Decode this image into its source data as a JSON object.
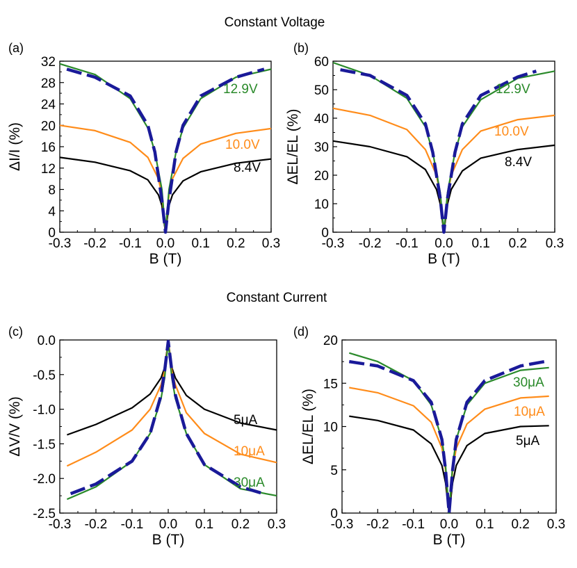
{
  "section_titles": {
    "top": "Constant Voltage",
    "bottom": "Constant Current"
  },
  "colors": {
    "green": "#2a8a2a",
    "orange": "#ff8c1a",
    "black": "#000000",
    "fit": "#1a1a99"
  },
  "chart_data": [
    {
      "id": "a",
      "panel_label": "(a)",
      "type": "line",
      "xlabel": "B (T)",
      "ylabel": "ΔI/I (%)",
      "xlim": [
        -0.3,
        0.3
      ],
      "ylim": [
        0,
        32
      ],
      "xticks": [
        "-0.3",
        "-0.2",
        "-0.1",
        "0.0",
        "0.1",
        "0.2",
        "0.3"
      ],
      "yticks": [
        "0",
        "4",
        "8",
        "12",
        "16",
        "20",
        "24",
        "28",
        "32"
      ],
      "ytick_values": [
        0,
        4,
        8,
        12,
        16,
        20,
        24,
        28,
        32
      ],
      "series": [
        {
          "name": "8.4V",
          "color": "black",
          "values": [
            [
              -0.3,
              14.0
            ],
            [
              -0.2,
              13.1
            ],
            [
              -0.1,
              11.5
            ],
            [
              -0.05,
              9.8
            ],
            [
              -0.02,
              7.0
            ],
            [
              -0.01,
              5.0
            ],
            [
              0.0,
              0.0
            ],
            [
              0.01,
              5.0
            ],
            [
              0.02,
              7.0
            ],
            [
              0.05,
              9.6
            ],
            [
              0.1,
              11.3
            ],
            [
              0.2,
              12.9
            ],
            [
              0.3,
              13.7
            ]
          ]
        },
        {
          "name": "10.0V",
          "color": "orange",
          "values": [
            [
              -0.3,
              20.0
            ],
            [
              -0.2,
              19.0
            ],
            [
              -0.1,
              16.8
            ],
            [
              -0.05,
              14.0
            ],
            [
              -0.02,
              10.0
            ],
            [
              -0.01,
              7.0
            ],
            [
              0.0,
              0.0
            ],
            [
              0.01,
              7.0
            ],
            [
              0.02,
              10.0
            ],
            [
              0.05,
              13.8
            ],
            [
              0.1,
              16.5
            ],
            [
              0.2,
              18.5
            ],
            [
              0.3,
              19.4
            ]
          ]
        },
        {
          "name": "12.9V",
          "color": "green",
          "values": [
            [
              -0.3,
              31.5
            ],
            [
              -0.2,
              29.5
            ],
            [
              -0.1,
              25.0
            ],
            [
              -0.05,
              19.5
            ],
            [
              -0.03,
              15.0
            ],
            [
              -0.01,
              8.0
            ],
            [
              0.0,
              0.0
            ],
            [
              0.01,
              8.0
            ],
            [
              0.03,
              15.0
            ],
            [
              0.05,
              19.5
            ],
            [
              0.1,
              25.0
            ],
            [
              0.2,
              29.0
            ],
            [
              0.3,
              30.5
            ]
          ]
        },
        {
          "name": "fit",
          "color": "fit",
          "dashed": true,
          "values": [
            [
              -0.28,
              30.5
            ],
            [
              -0.2,
              29.0
            ],
            [
              -0.1,
              25.5
            ],
            [
              -0.05,
              20.0
            ],
            [
              -0.03,
              15.0
            ],
            [
              -0.01,
              6.0
            ],
            [
              0.0,
              0.0
            ],
            [
              0.01,
              6.0
            ],
            [
              0.03,
              15.0
            ],
            [
              0.05,
              20.0
            ],
            [
              0.1,
              25.5
            ],
            [
              0.2,
              29.0
            ],
            [
              0.28,
              30.5
            ]
          ]
        }
      ],
      "series_labels": [
        {
          "text": "12.9V",
          "color": "green"
        },
        {
          "text": "10.0V",
          "color": "orange"
        },
        {
          "text": "8.4V",
          "color": "black"
        }
      ]
    },
    {
      "id": "b",
      "panel_label": "(b)",
      "type": "line",
      "xlabel": "B (T)",
      "ylabel": "ΔEL/EL (%)",
      "xlim": [
        -0.3,
        0.3
      ],
      "ylim": [
        0,
        60
      ],
      "xticks": [
        "-0.3",
        "-0.2",
        "-0.1",
        "0.0",
        "0.1",
        "0.2",
        "0.3"
      ],
      "yticks": [
        "0",
        "10",
        "20",
        "30",
        "40",
        "50",
        "60"
      ],
      "ytick_values": [
        0,
        10,
        20,
        30,
        40,
        50,
        60
      ],
      "series": [
        {
          "name": "8.4V",
          "color": "black",
          "values": [
            [
              -0.3,
              32.0
            ],
            [
              -0.2,
              30.0
            ],
            [
              -0.1,
              26.5
            ],
            [
              -0.05,
              22.0
            ],
            [
              -0.02,
              15.0
            ],
            [
              -0.01,
              10.0
            ],
            [
              0.0,
              0.0
            ],
            [
              0.01,
              10.0
            ],
            [
              0.02,
              15.0
            ],
            [
              0.05,
              21.5
            ],
            [
              0.1,
              26.0
            ],
            [
              0.2,
              29.0
            ],
            [
              0.3,
              30.5
            ]
          ]
        },
        {
          "name": "10.0V",
          "color": "orange",
          "values": [
            [
              -0.3,
              43.5
            ],
            [
              -0.2,
              41.0
            ],
            [
              -0.1,
              36.0
            ],
            [
              -0.05,
              29.0
            ],
            [
              -0.02,
              20.0
            ],
            [
              -0.01,
              13.0
            ],
            [
              0.0,
              0.0
            ],
            [
              0.01,
              13.0
            ],
            [
              0.02,
              20.0
            ],
            [
              0.05,
              29.0
            ],
            [
              0.1,
              35.5
            ],
            [
              0.2,
              39.5
            ],
            [
              0.3,
              41.0
            ]
          ]
        },
        {
          "name": "12.9V",
          "color": "green",
          "values": [
            [
              -0.3,
              59.5
            ],
            [
              -0.2,
              55.0
            ],
            [
              -0.1,
              47.0
            ],
            [
              -0.05,
              37.0
            ],
            [
              -0.03,
              28.0
            ],
            [
              -0.01,
              14.0
            ],
            [
              0.0,
              0.0
            ],
            [
              0.01,
              14.0
            ],
            [
              0.03,
              28.0
            ],
            [
              0.05,
              37.0
            ],
            [
              0.1,
              46.5
            ],
            [
              0.2,
              54.0
            ],
            [
              0.3,
              56.5
            ]
          ]
        },
        {
          "name": "fit",
          "color": "fit",
          "dashed": true,
          "values": [
            [
              -0.28,
              57.0
            ],
            [
              -0.2,
              55.0
            ],
            [
              -0.1,
              48.0
            ],
            [
              -0.05,
              38.0
            ],
            [
              -0.03,
              28.0
            ],
            [
              -0.01,
              12.0
            ],
            [
              0.0,
              0.0
            ],
            [
              0.01,
              12.0
            ],
            [
              0.03,
              28.0
            ],
            [
              0.05,
              38.0
            ],
            [
              0.1,
              48.0
            ],
            [
              0.2,
              54.5
            ],
            [
              0.25,
              56.5
            ]
          ]
        }
      ],
      "series_labels": [
        {
          "text": "12.9V",
          "color": "green"
        },
        {
          "text": "10.0V",
          "color": "orange"
        },
        {
          "text": "8.4V",
          "color": "black"
        }
      ]
    },
    {
      "id": "c",
      "panel_label": "(c)",
      "type": "line",
      "xlabel": "B (T)",
      "ylabel": "ΔV/V (%)",
      "xlim": [
        -0.3,
        0.3
      ],
      "ylim": [
        -2.5,
        0.0
      ],
      "xticks": [
        "-0.3",
        "-0.2",
        "-0.1",
        "0.0",
        "0.1",
        "0.2",
        "0.3"
      ],
      "yticks": [
        "0.0",
        "-0.5",
        "-1.0",
        "-1.5",
        "-2.0",
        "-2.5"
      ],
      "ytick_values": [
        0.0,
        -0.5,
        -1.0,
        -1.5,
        -2.0,
        -2.5
      ],
      "series": [
        {
          "name": "5μA",
          "color": "black",
          "values": [
            [
              -0.28,
              -1.37
            ],
            [
              -0.2,
              -1.22
            ],
            [
              -0.1,
              -0.98
            ],
            [
              -0.05,
              -0.78
            ],
            [
              -0.02,
              -0.55
            ],
            [
              -0.01,
              -0.4
            ],
            [
              0.0,
              -0.02
            ],
            [
              0.01,
              -0.4
            ],
            [
              0.02,
              -0.55
            ],
            [
              0.05,
              -0.8
            ],
            [
              0.1,
              -1.0
            ],
            [
              0.2,
              -1.2
            ],
            [
              0.3,
              -1.3
            ]
          ]
        },
        {
          "name": "10μA",
          "color": "orange",
          "values": [
            [
              -0.28,
              -1.82
            ],
            [
              -0.2,
              -1.62
            ],
            [
              -0.1,
              -1.3
            ],
            [
              -0.05,
              -1.0
            ],
            [
              -0.02,
              -0.65
            ],
            [
              -0.01,
              -0.45
            ],
            [
              0.0,
              -0.02
            ],
            [
              0.01,
              -0.45
            ],
            [
              0.02,
              -0.65
            ],
            [
              0.05,
              -1.05
            ],
            [
              0.1,
              -1.35
            ],
            [
              0.2,
              -1.65
            ],
            [
              0.3,
              -1.77
            ]
          ]
        },
        {
          "name": "30μA",
          "color": "green",
          "values": [
            [
              -0.28,
              -2.3
            ],
            [
              -0.2,
              -2.12
            ],
            [
              -0.1,
              -1.75
            ],
            [
              -0.05,
              -1.35
            ],
            [
              -0.02,
              -0.85
            ],
            [
              -0.01,
              -0.55
            ],
            [
              0.0,
              -0.02
            ],
            [
              0.01,
              -0.55
            ],
            [
              0.02,
              -0.85
            ],
            [
              0.05,
              -1.35
            ],
            [
              0.1,
              -1.8
            ],
            [
              0.2,
              -2.15
            ],
            [
              0.3,
              -2.25
            ]
          ]
        },
        {
          "name": "fit",
          "color": "fit",
          "dashed": true,
          "values": [
            [
              -0.27,
              -2.22
            ],
            [
              -0.2,
              -2.08
            ],
            [
              -0.1,
              -1.75
            ],
            [
              -0.05,
              -1.35
            ],
            [
              -0.02,
              -0.8
            ],
            [
              -0.01,
              -0.45
            ],
            [
              0.0,
              -0.02
            ],
            [
              0.01,
              -0.45
            ],
            [
              0.02,
              -0.8
            ],
            [
              0.05,
              -1.35
            ],
            [
              0.1,
              -1.8
            ],
            [
              0.2,
              -2.12
            ],
            [
              0.27,
              -2.23
            ]
          ]
        }
      ],
      "series_labels": [
        {
          "text": "5μA",
          "color": "black"
        },
        {
          "text": "10μA",
          "color": "orange"
        },
        {
          "text": "30μA",
          "color": "green"
        }
      ]
    },
    {
      "id": "d",
      "panel_label": "(d)",
      "type": "line",
      "xlabel": "B (T)",
      "ylabel": "ΔEL/EL (%)",
      "xlim": [
        -0.3,
        0.3
      ],
      "ylim": [
        0,
        20
      ],
      "xticks": [
        "-0.3",
        "-0.2",
        "-0.1",
        "0.0",
        "0.1",
        "0.2",
        "0.3"
      ],
      "yticks": [
        "0",
        "5",
        "10",
        "15",
        "20"
      ],
      "ytick_values": [
        0,
        5,
        10,
        15,
        20
      ],
      "series": [
        {
          "name": "5μA",
          "color": "black",
          "values": [
            [
              -0.28,
              11.2
            ],
            [
              -0.2,
              10.7
            ],
            [
              -0.1,
              9.6
            ],
            [
              -0.05,
              8.0
            ],
            [
              -0.02,
              5.5
            ],
            [
              -0.01,
              3.5
            ],
            [
              0.0,
              0.0
            ],
            [
              0.01,
              3.5
            ],
            [
              0.02,
              5.5
            ],
            [
              0.05,
              7.8
            ],
            [
              0.1,
              9.2
            ],
            [
              0.2,
              10.0
            ],
            [
              0.28,
              10.1
            ]
          ]
        },
        {
          "name": "10μA",
          "color": "orange",
          "values": [
            [
              -0.28,
              14.5
            ],
            [
              -0.2,
              13.9
            ],
            [
              -0.1,
              12.4
            ],
            [
              -0.05,
              10.5
            ],
            [
              -0.02,
              7.5
            ],
            [
              -0.01,
              5.0
            ],
            [
              0.0,
              0.0
            ],
            [
              0.01,
              5.0
            ],
            [
              0.02,
              7.5
            ],
            [
              0.05,
              10.3
            ],
            [
              0.1,
              12.0
            ],
            [
              0.2,
              13.3
            ],
            [
              0.28,
              13.5
            ]
          ]
        },
        {
          "name": "30μA",
          "color": "green",
          "values": [
            [
              -0.28,
              18.5
            ],
            [
              -0.2,
              17.5
            ],
            [
              -0.1,
              15.3
            ],
            [
              -0.05,
              12.5
            ],
            [
              -0.02,
              8.5
            ],
            [
              -0.01,
              5.5
            ],
            [
              0.0,
              0.0
            ],
            [
              0.01,
              5.5
            ],
            [
              0.02,
              8.5
            ],
            [
              0.05,
              12.5
            ],
            [
              0.1,
              15.0
            ],
            [
              0.2,
              16.5
            ],
            [
              0.28,
              16.8
            ]
          ]
        },
        {
          "name": "fit",
          "color": "fit",
          "dashed": true,
          "values": [
            [
              -0.28,
              17.5
            ],
            [
              -0.2,
              17.0
            ],
            [
              -0.1,
              15.3
            ],
            [
              -0.05,
              12.8
            ],
            [
              -0.02,
              8.5
            ],
            [
              -0.01,
              5.0
            ],
            [
              0.0,
              0.0
            ],
            [
              0.01,
              5.0
            ],
            [
              0.02,
              8.5
            ],
            [
              0.05,
              12.8
            ],
            [
              0.1,
              15.3
            ],
            [
              0.2,
              17.0
            ],
            [
              0.28,
              17.6
            ]
          ]
        }
      ],
      "series_labels": [
        {
          "text": "30μA",
          "color": "green"
        },
        {
          "text": "10μA",
          "color": "orange"
        },
        {
          "text": "5μA",
          "color": "black"
        }
      ]
    }
  ]
}
